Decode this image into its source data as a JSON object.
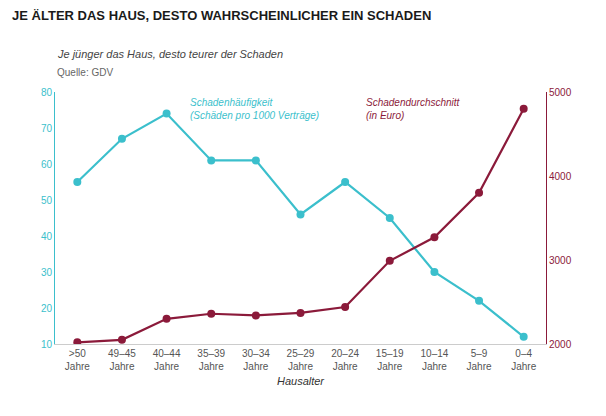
{
  "chart_data": {
    "type": "line",
    "title": "JE ÄLTER DAS HAUS, DESTO WAHRSCHEINLICHER EIN SCHADEN",
    "subtitle": "Je jünger das Haus, desto teurer der Schaden",
    "xlabel": "Hausalter",
    "annotations": [
      {
        "text": "Schadenhäufigkeit\n(Schäden pro 1000 Verträge)",
        "color": "#3bbfcc"
      },
      {
        "text": "Schadendurchschnitt\n(in Euro)",
        "color": "#8b1a3a"
      },
      {
        "text": "Quelle: GDV"
      }
    ],
    "categories": [
      ">50\nJahre",
      "49–45\nJahre",
      "40–44\nJahre",
      "35–39\nJahre",
      "30–34\nJahre",
      "25–29\nJahre",
      "20–24\nJahre",
      "15–19\nJahre",
      "10–14\nJahre",
      "5–9\nJahre",
      "0–4\nJahre"
    ],
    "series": [
      {
        "color": "#3bbfcc",
        "marker": "circle",
        "values": [
          55,
          67,
          74,
          61,
          61,
          46,
          55,
          45,
          30,
          22,
          12
        ]
      },
      {
        "color": "#8b1a3a",
        "marker": "circle",
        "axis": "y2",
        "values": [
          2020,
          2050,
          2300,
          2360,
          2340,
          2370,
          2440,
          2990,
          3270,
          3800,
          4800
        ]
      }
    ],
    "ylim": [
      10,
      80
    ],
    "yticks": [
      10,
      20,
      30,
      40,
      50,
      60,
      70,
      80
    ],
    "y2lim": [
      2000,
      5000
    ],
    "y2ticks": [
      2000,
      3000,
      4000,
      5000
    ],
    "grid": false
  }
}
